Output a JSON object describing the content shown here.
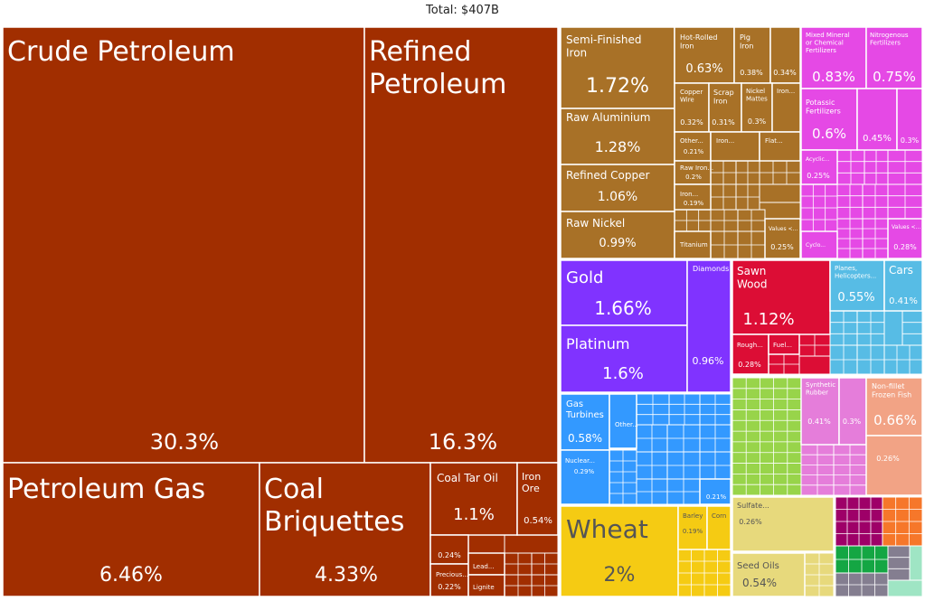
{
  "chart_data": {
    "type": "treemap",
    "title": "Total: $407B",
    "colors": {
      "mineral": "#a12e00",
      "metals": "#a87127",
      "chemicals": "#e549e5",
      "precious": "#8033ff",
      "wood": "#dc0d35",
      "transport": "#57bce5",
      "machinery": "#3399ff",
      "vegetable": "#f5cb13",
      "foodstuffs": "#e7d97c",
      "plastics": "#e57dda",
      "animal": "#f2a385",
      "produce": "#98d44a",
      "textiles": "#9e0068",
      "misc1": "#f6772a",
      "misc2": "#14a643",
      "misc3": "#847e90",
      "misc4": "#9fe5c4"
    },
    "items": [
      {
        "label": "Crude Petroleum",
        "value": "30.3%",
        "group": "mineral"
      },
      {
        "label": "Refined Petroleum",
        "value": "16.3%",
        "group": "mineral"
      },
      {
        "label": "Petroleum Gas",
        "value": "6.46%",
        "group": "mineral"
      },
      {
        "label": "Coal Briquettes",
        "value": "4.33%",
        "group": "mineral"
      },
      {
        "label": "Coal Tar Oil",
        "value": "1.1%",
        "group": "mineral"
      },
      {
        "label": "Iron Ore",
        "value": "0.54%",
        "group": "mineral"
      },
      {
        "label": "",
        "value": "0.24%",
        "group": "mineral"
      },
      {
        "label": "Precious...",
        "value": "0.22%",
        "group": "mineral"
      },
      {
        "label": "Lead...",
        "value": "",
        "group": "mineral"
      },
      {
        "label": "Lignite",
        "value": "",
        "group": "mineral"
      },
      {
        "label": "Semi-Finished Iron",
        "value": "1.72%",
        "group": "metals"
      },
      {
        "label": "Raw Aluminium",
        "value": "1.28%",
        "group": "metals"
      },
      {
        "label": "Refined Copper",
        "value": "1.06%",
        "group": "metals"
      },
      {
        "label": "Raw Nickel",
        "value": "0.99%",
        "group": "metals"
      },
      {
        "label": "Hot-Rolled Iron",
        "value": "0.63%",
        "group": "metals"
      },
      {
        "label": "Pig Iron",
        "value": "0.38%",
        "group": "metals"
      },
      {
        "label": "",
        "value": "0.34%",
        "group": "metals"
      },
      {
        "label": "Copper Wire",
        "value": "0.32%",
        "group": "metals"
      },
      {
        "label": "Scrap Iron",
        "value": "0.31%",
        "group": "metals"
      },
      {
        "label": "Nickel Mattes",
        "value": "0.3%",
        "group": "metals"
      },
      {
        "label": "Iron...",
        "value": "",
        "group": "metals"
      },
      {
        "label": "Other...",
        "value": "0.21%",
        "group": "metals"
      },
      {
        "label": "Iron...",
        "value": "",
        "group": "metals"
      },
      {
        "label": "Flat...",
        "value": "",
        "group": "metals"
      },
      {
        "label": "Raw Iron...",
        "value": "0.2%",
        "group": "metals"
      },
      {
        "label": "Iron...",
        "value": "0.19%",
        "group": "metals"
      },
      {
        "label": "Titanium",
        "value": "",
        "group": "metals"
      },
      {
        "label": "Values <...",
        "value": "0.25%",
        "group": "metals"
      },
      {
        "label": "Mixed Mineral or Chemical Fertilizers",
        "value": "0.83%",
        "group": "chemicals"
      },
      {
        "label": "Nitrogenous Fertilizers",
        "value": "0.75%",
        "group": "chemicals"
      },
      {
        "label": "Potassic Fertilizers",
        "value": "0.6%",
        "group": "chemicals"
      },
      {
        "label": "",
        "value": "0.45%",
        "group": "chemicals"
      },
      {
        "label": "",
        "value": "0.3%",
        "group": "chemicals"
      },
      {
        "label": "Acyclic...",
        "value": "0.25%",
        "group": "chemicals"
      },
      {
        "label": "Values <...",
        "value": "0.28%",
        "group": "chemicals"
      },
      {
        "label": "Cyclo...",
        "value": "",
        "group": "chemicals"
      },
      {
        "label": "Gold",
        "value": "1.66%",
        "group": "precious"
      },
      {
        "label": "Platinum",
        "value": "1.6%",
        "group": "precious"
      },
      {
        "label": "Diamonds",
        "value": "0.96%",
        "group": "precious"
      },
      {
        "label": "Sawn Wood",
        "value": "1.12%",
        "group": "wood"
      },
      {
        "label": "Rough...",
        "value": "0.28%",
        "group": "wood"
      },
      {
        "label": "Fuel...",
        "value": "",
        "group": "wood"
      },
      {
        "label": "Planes, Helicopters...",
        "value": "0.55%",
        "group": "transport"
      },
      {
        "label": "Cars",
        "value": "0.41%",
        "group": "transport"
      },
      {
        "label": "Gas Turbines",
        "value": "0.58%",
        "group": "machinery"
      },
      {
        "label": "Other...",
        "value": "",
        "group": "machinery"
      },
      {
        "label": "Nuclear...",
        "value": "0.29%",
        "group": "machinery"
      },
      {
        "label": "",
        "value": "0.21%",
        "group": "machinery"
      },
      {
        "label": "Wheat",
        "value": "2%",
        "group": "vegetable"
      },
      {
        "label": "Barley",
        "value": "0.19%",
        "group": "vegetable"
      },
      {
        "label": "Corn",
        "value": "",
        "group": "vegetable"
      },
      {
        "label": "Synthetic Rubber",
        "value": "0.41%",
        "group": "plastics"
      },
      {
        "label": "",
        "value": "0.3%",
        "group": "plastics"
      },
      {
        "label": "Non-fillet Frozen Fish",
        "value": "0.66%",
        "group": "animal"
      },
      {
        "label": "",
        "value": "0.26%",
        "group": "animal"
      },
      {
        "label": "Sulfate...",
        "value": "0.26%",
        "group": "foodstuffs"
      },
      {
        "label": "Seed Oils",
        "value": "0.54%",
        "group": "foodstuffs"
      }
    ]
  }
}
